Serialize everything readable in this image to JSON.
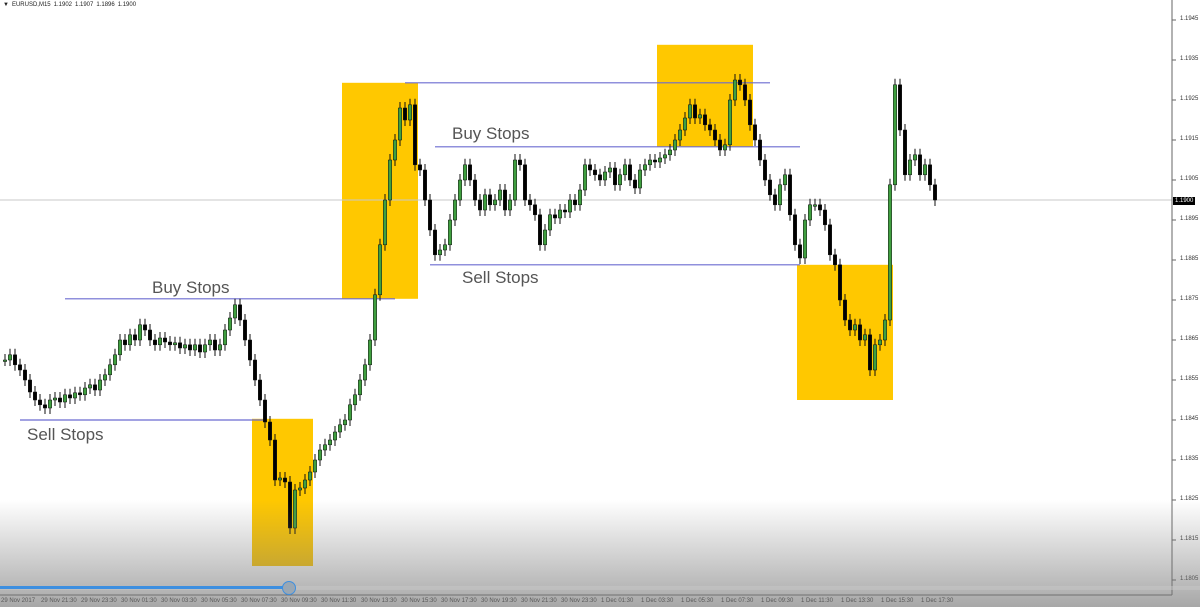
{
  "header": {
    "symbol": "EURUSD,M15",
    "open": "1.1902",
    "high": "1.1907",
    "low": "1.1896",
    "close": "1.1900"
  },
  "colors": {
    "bull": "#3f9f3f",
    "bear": "#000000",
    "box": "#ffc800",
    "level_line": "#6b6bd0",
    "grid_price_line": "#c8c8c8",
    "scrubber": "#3d8fe0"
  },
  "player": {
    "progress_percent": 24
  },
  "chart_data": {
    "type": "candlestick",
    "symbol": "EURUSD",
    "timeframe": "M15",
    "ylim": [
      1.18,
      1.195
    ],
    "current_price": "1.1900",
    "y_ticks": [
      "1.1945",
      "1.1935",
      "1.1925",
      "1.1915",
      "1.1905",
      "1.1895",
      "1.1885",
      "1.1875",
      "1.1865",
      "1.1855",
      "1.1845",
      "1.1835",
      "1.1825",
      "1.1815",
      "1.1805"
    ],
    "x_ticks": [
      "29 Nov 2017",
      "29 Nov 21:30",
      "29 Nov 23:30",
      "30 Nov 01:30",
      "30 Nov 03:30",
      "30 Nov 05:30",
      "30 Nov 07:30",
      "30 Nov 09:30",
      "30 Nov 11:30",
      "30 Nov 13:30",
      "30 Nov 15:30",
      "30 Nov 17:30",
      "30 Nov 19:30",
      "30 Nov 21:30",
      "30 Nov 23:30",
      "1 Dec 01:30",
      "1 Dec 03:30",
      "1 Dec 05:30",
      "1 Dec 07:30",
      "1 Dec 09:30",
      "1 Dec 11:30",
      "1 Dec 13:30",
      "1 Dec 15:30",
      "1 Dec 17:30"
    ],
    "bars_per_x_tick": 8,
    "close": [
      1.186,
      1.18613,
      1.18588,
      1.18575,
      1.1855,
      1.1852,
      1.185,
      1.18488,
      1.1848,
      1.185,
      1.18505,
      1.18495,
      1.18513,
      1.18505,
      1.18518,
      1.18513,
      1.1853,
      1.18538,
      1.18525,
      1.1855,
      1.18563,
      1.18588,
      1.18613,
      1.1865,
      1.18638,
      1.18663,
      1.1865,
      1.18688,
      1.18675,
      1.1865,
      1.18638,
      1.18655,
      1.18645,
      1.18638,
      1.18643,
      1.1863,
      1.18638,
      1.18625,
      1.18638,
      1.1862,
      1.18638,
      1.1865,
      1.18625,
      1.18638,
      1.18675,
      1.18705,
      1.18738,
      1.187,
      1.1865,
      1.186,
      1.1855,
      1.185,
      1.18445,
      1.184,
      1.183,
      1.18305,
      1.18295,
      1.1818,
      1.18275,
      1.1828,
      1.183,
      1.1832,
      1.1835,
      1.18375,
      1.18388,
      1.184,
      1.1842,
      1.18438,
      1.1845,
      1.18488,
      1.18513,
      1.1855,
      1.18588,
      1.1865,
      1.18763,
      1.18888,
      1.19,
      1.191,
      1.1915,
      1.1923,
      1.192,
      1.19238,
      1.19088,
      1.19075,
      1.19,
      1.18925,
      1.18863,
      1.18875,
      1.18888,
      1.1895,
      1.19,
      1.1905,
      1.19088,
      1.1905,
      1.19,
      1.18975,
      1.19013,
      1.18988,
      1.19,
      1.19025,
      1.18975,
      1.19,
      1.191,
      1.19088,
      1.19,
      1.18988,
      1.18963,
      1.18888,
      1.18925,
      1.18963,
      1.18955,
      1.18975,
      1.1897,
      1.19,
      1.18988,
      1.19025,
      1.19088,
      1.19075,
      1.19063,
      1.1905,
      1.1907,
      1.1908,
      1.19038,
      1.19063,
      1.19088,
      1.1905,
      1.1903,
      1.19075,
      1.19088,
      1.191,
      1.19095,
      1.19105,
      1.19113,
      1.19125,
      1.1915,
      1.19175,
      1.19205,
      1.19238,
      1.19205,
      1.19213,
      1.19188,
      1.19175,
      1.1915,
      1.19125,
      1.19138,
      1.1925,
      1.193,
      1.19288,
      1.1925,
      1.19188,
      1.1915,
      1.191,
      1.1905,
      1.19013,
      1.18988,
      1.19038,
      1.19063,
      1.18963,
      1.18888,
      1.18855,
      1.1895,
      1.18988,
      1.18988,
      1.18975,
      1.18938,
      1.18863,
      1.18838,
      1.1875,
      1.187,
      1.18675,
      1.18688,
      1.1865,
      1.18663,
      1.18575,
      1.18638,
      1.1865,
      1.187,
      1.19038,
      1.19288,
      1.19175,
      1.19063,
      1.191,
      1.19113,
      1.19063,
      1.19088,
      1.19038,
      1.19
    ],
    "levels": [
      {
        "label": "Sell Stops",
        "price": 1.1845,
        "from_bar": 3,
        "to_bar": 52
      },
      {
        "label": "Buy Stops",
        "price": 1.18753,
        "from_bar": 12,
        "to_bar": 78
      },
      {
        "label": "",
        "price": 1.19293,
        "from_bar": 80,
        "to_bar": 153
      },
      {
        "label": "Buy Stops",
        "price": 1.19133,
        "from_bar": 86,
        "to_bar": 159
      },
      {
        "label": "Sell Stops",
        "price": 1.18838,
        "from_bar": 85,
        "to_bar": 159
      }
    ],
    "highlight_zones": [
      {
        "from_bar": 50,
        "to_bar": 61,
        "price_top": 1.18453,
        "price_bottom": 1.18085
      },
      {
        "from_bar": 68,
        "to_bar": 82,
        "price_top": 1.19293,
        "price_bottom": 1.18753
      },
      {
        "from_bar": 131,
        "to_bar": 149,
        "price_top": 1.19388,
        "price_bottom": 1.19133
      },
      {
        "from_bar": 159,
        "to_bar": 177,
        "price_top": 1.18838,
        "price_bottom": 1.185
      }
    ]
  }
}
